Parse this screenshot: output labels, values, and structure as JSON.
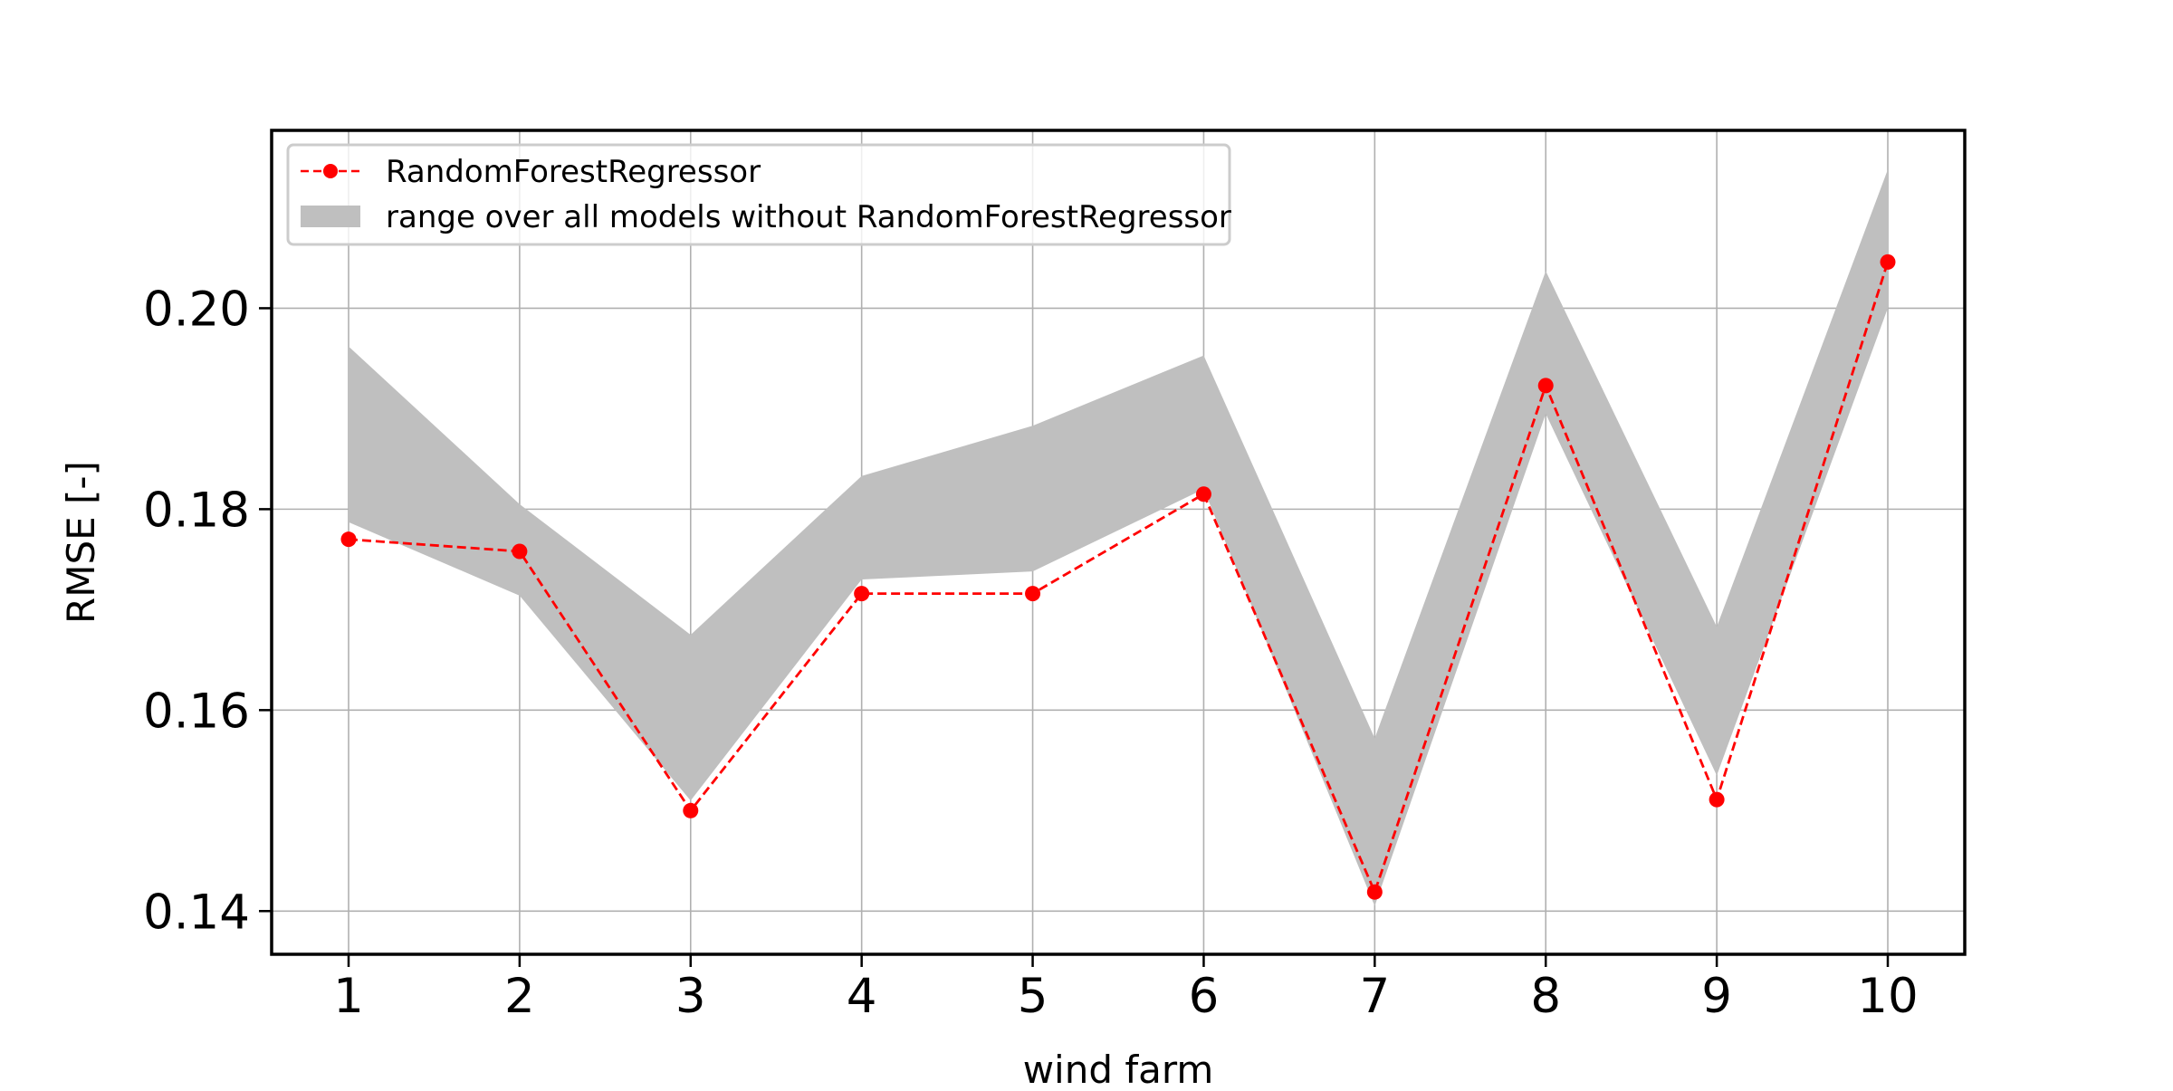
{
  "chart_data": {
    "type": "line",
    "title": "",
    "xlabel": "wind farm",
    "ylabel": "RMSE [-]",
    "x": [
      1,
      2,
      3,
      4,
      5,
      6,
      7,
      8,
      9,
      10
    ],
    "xlim": [
      0.55,
      10.45
    ],
    "ylim": [
      0.1357,
      0.2177
    ],
    "xticks": [
      1,
      2,
      3,
      4,
      5,
      6,
      7,
      8,
      9,
      10
    ],
    "yticks": [
      0.14,
      0.16,
      0.18,
      0.2
    ],
    "ytick_labels": [
      "0.14",
      "0.16",
      "0.18",
      "0.20"
    ],
    "grid": true,
    "legend_position": "top-left",
    "series": [
      {
        "name": "RandomForestRegressor",
        "kind": "line-markers",
        "color": "#ff0000",
        "linestyle": "dashed",
        "values": [
          0.177,
          0.1758,
          0.15,
          0.1716,
          0.1716,
          0.1815,
          0.1419,
          0.1923,
          0.1511,
          0.2046
        ]
      },
      {
        "name": "range over all models without RandomForestRegressor",
        "kind": "band",
        "color": "#bfbfbf",
        "lower": [
          0.1787,
          0.1714,
          0.151,
          0.173,
          0.1738,
          0.182,
          0.1405,
          0.1895,
          0.1535,
          0.2
        ],
        "upper": [
          0.1962,
          0.1805,
          0.1675,
          0.1833,
          0.1883,
          0.1953,
          0.1572,
          0.2037,
          0.1683,
          0.2138
        ]
      }
    ]
  }
}
